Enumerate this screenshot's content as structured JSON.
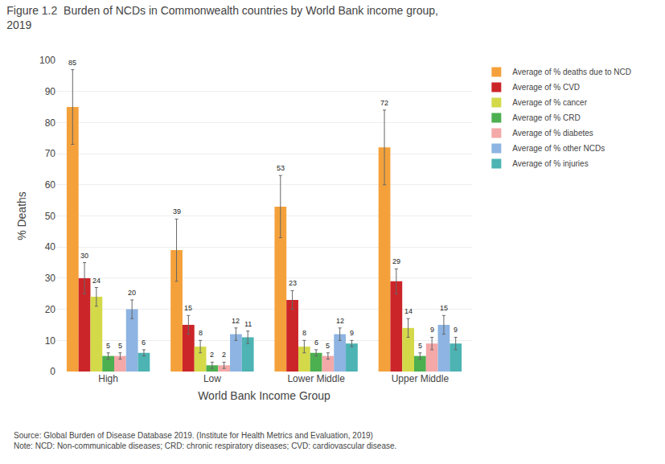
{
  "chart_data": {
    "type": "bar",
    "title": "Figure 1.2  Burden of NCDs in Commonwealth countries by World Bank income group,\n2019",
    "xlabel": "World Bank Income Group",
    "ylabel": "% Deaths",
    "categories": [
      "High",
      "Low",
      "Lower Middle",
      "Upper Middle"
    ],
    "series": [
      {
        "name": "Average of % deaths due to NCD",
        "color": "#f4a13b",
        "values": [
          85,
          39,
          53,
          72
        ],
        "errors": [
          12,
          10,
          10,
          12
        ]
      },
      {
        "name": "Average of % CVD",
        "color": "#cc2529",
        "values": [
          30,
          15,
          23,
          29
        ],
        "errors": [
          5,
          3,
          3,
          4
        ]
      },
      {
        "name": "Average of % cancer",
        "color": "#d4d94a",
        "values": [
          24,
          8,
          8,
          14
        ],
        "errors": [
          3,
          2,
          2,
          3
        ]
      },
      {
        "name": "Average of % CRD",
        "color": "#4caf50",
        "values": [
          5,
          2,
          6,
          5
        ],
        "errors": [
          1,
          1,
          1,
          1
        ]
      },
      {
        "name": "Average of % diabetes",
        "color": "#f4a8a8",
        "values": [
          5,
          2,
          5,
          9
        ],
        "errors": [
          1,
          1,
          1,
          2
        ]
      },
      {
        "name": "Average of % other NCDs",
        "color": "#8db4e2",
        "values": [
          20,
          12,
          12,
          15
        ],
        "errors": [
          3,
          2,
          2,
          3
        ]
      },
      {
        "name": "Average of % injuries",
        "color": "#4db3b3",
        "values": [
          6,
          11,
          9,
          9
        ],
        "errors": [
          1,
          2,
          1,
          2
        ]
      }
    ],
    "ylim": [
      0,
      100
    ],
    "yticks": [
      0,
      10,
      20,
      30,
      40,
      50,
      60,
      70,
      80,
      90,
      100
    ],
    "grid": true,
    "legend": "right",
    "data_labels": true,
    "annotations": [
      "Source: Global Burden of Disease Database 2019. (Institute for Health Metrics and Evaluation, 2019)",
      "Note: NCD: Non-communicable diseases; CRD: chronic respiratory diseases; CVD: cardiovascular disease."
    ]
  }
}
